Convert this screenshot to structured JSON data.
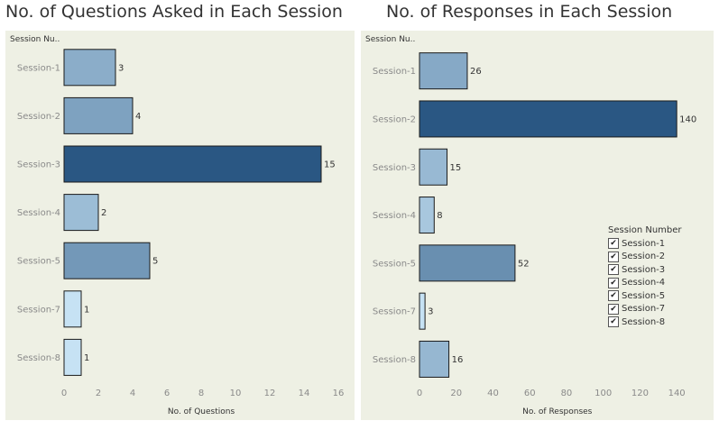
{
  "chart_data": [
    {
      "type": "bar",
      "orientation": "horizontal",
      "title": "No. of Questions Asked in Each Session",
      "row_header": "Session Nu..",
      "xlabel": "No. of Questions",
      "categories": [
        "Session-1",
        "Session-2",
        "Session-3",
        "Session-4",
        "Session-5",
        "Session-7",
        "Session-8"
      ],
      "values": [
        3,
        4,
        15,
        2,
        5,
        1,
        1
      ],
      "xticks": [
        0,
        2,
        4,
        6,
        8,
        10,
        12,
        14,
        16
      ],
      "xlim": [
        0,
        16
      ],
      "grid": false,
      "color_scale": [
        "#c6e2f4",
        "#2a5783"
      ]
    },
    {
      "type": "bar",
      "orientation": "horizontal",
      "title": "No. of Responses in Each Session",
      "row_header": "Session Nu..",
      "xlabel": "No. of Responses",
      "categories": [
        "Session-1",
        "Session-2",
        "Session-3",
        "Session-4",
        "Session-5",
        "Session-7",
        "Session-8"
      ],
      "values": [
        26,
        140,
        15,
        8,
        52,
        3,
        16
      ],
      "xticks": [
        0,
        20,
        40,
        60,
        80,
        100,
        120,
        140
      ],
      "xlim": [
        0,
        150
      ],
      "grid": false,
      "color_scale": [
        "#c6e2f4",
        "#2a5783"
      ]
    }
  ],
  "legend": {
    "title": "Session Number",
    "placement": "right",
    "items": [
      "Session-1",
      "Session-2",
      "Session-3",
      "Session-4",
      "Session-5",
      "Session-7",
      "Session-8"
    ],
    "check_glyph": "✔"
  }
}
